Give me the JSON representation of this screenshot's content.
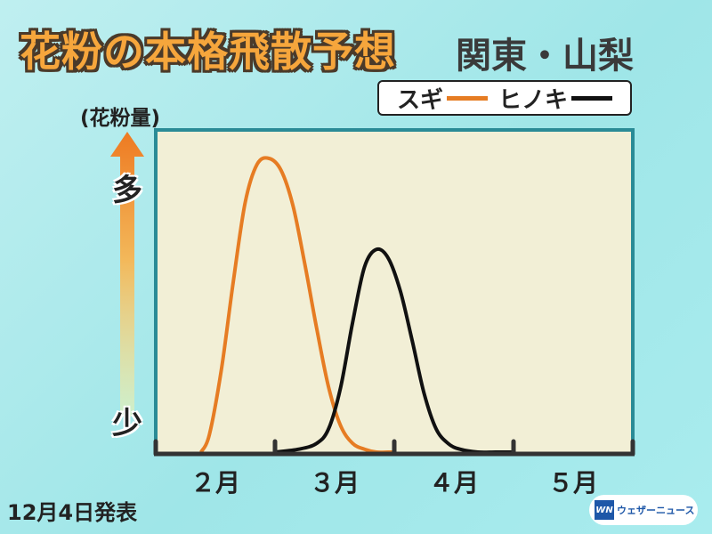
{
  "title": "花粉の本格飛散予想",
  "region": "関東・山梨",
  "legend": {
    "sugi_label": "スギ",
    "hinoki_label": "ヒノキ"
  },
  "axis": {
    "unit_label": "(花粉量)",
    "high_label": "多",
    "low_label": "少"
  },
  "announce_date": "12月4日発表",
  "logo": {
    "mark": "WN",
    "text": "ウェザーニュース"
  },
  "colors": {
    "sugi": "#e67c23",
    "hinoki": "#111111",
    "plot_bg": "#f2efd6",
    "plot_border": "#2a8b96"
  },
  "chart_data": {
    "type": "line",
    "x_unit": "month (1.0 = start of 2月)",
    "xlim": [
      1.0,
      5.0
    ],
    "ylim": [
      0,
      1
    ],
    "x_ticks": [
      2.0,
      3.0,
      4.0
    ],
    "x_tick_labels": [
      {
        "x": 1.5,
        "label": "２月"
      },
      {
        "x": 2.5,
        "label": "３月"
      },
      {
        "x": 3.5,
        "label": "４月"
      },
      {
        "x": 4.5,
        "label": "５月"
      }
    ],
    "grid": false,
    "series": [
      {
        "name": "スギ",
        "color": "#e67c23",
        "x": [
          1.38,
          1.45,
          1.55,
          1.65,
          1.75,
          1.85,
          1.95,
          2.05,
          2.15,
          2.25,
          2.35,
          2.45,
          2.55,
          2.65,
          2.75,
          2.85,
          2.95,
          3.0
        ],
        "y": [
          0.0,
          0.06,
          0.28,
          0.58,
          0.85,
          0.98,
          1.0,
          0.96,
          0.84,
          0.64,
          0.42,
          0.22,
          0.09,
          0.03,
          0.01,
          0.0,
          0.0,
          0.0
        ]
      },
      {
        "name": "ヒノキ",
        "color": "#111111",
        "x": [
          2.0,
          2.2,
          2.35,
          2.45,
          2.55,
          2.65,
          2.75,
          2.85,
          2.95,
          3.05,
          3.15,
          3.25,
          3.35,
          3.45,
          3.55,
          3.7,
          3.85,
          4.0
        ],
        "y": [
          0.0,
          0.01,
          0.03,
          0.08,
          0.22,
          0.44,
          0.63,
          0.69,
          0.66,
          0.55,
          0.38,
          0.2,
          0.08,
          0.03,
          0.01,
          0.0,
          0.0,
          0.0
        ]
      }
    ]
  }
}
